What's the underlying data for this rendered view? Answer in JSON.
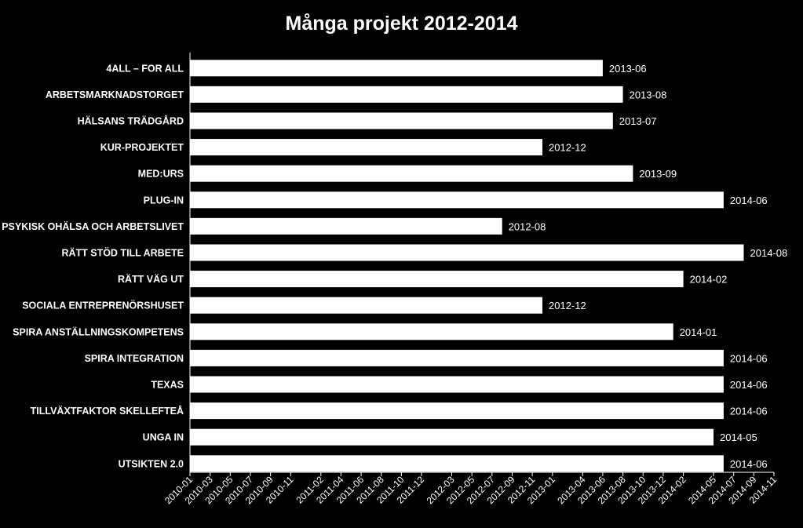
{
  "chart_data": {
    "type": "bar",
    "orientation": "horizontal",
    "title": "Många projekt 2012-2014",
    "xlabel": "",
    "ylabel": "",
    "grid": false,
    "legend": "none",
    "colors": {
      "background": "#000000",
      "bar": "#ffffff",
      "text": "#ffffff",
      "axis": "#ffffff"
    },
    "x_axis_type": "date",
    "xlim": [
      "2010-01",
      "2014-11"
    ],
    "x_ticks": [
      "2010-01",
      "2010-03",
      "2010-05",
      "2010-07",
      "2010-09",
      "2010-11",
      "2011-02",
      "2011-04",
      "2011-06",
      "2011-08",
      "2011-10",
      "2011-12",
      "2012-03",
      "2012-05",
      "2012-07",
      "2012-09",
      "2012-11",
      "2013-01",
      "2013-04",
      "2013-06",
      "2013-08",
      "2013-10",
      "2013-12",
      "2014-02",
      "2014-05",
      "2014-07",
      "2014-09",
      "2014-11"
    ],
    "categories": [
      "4ALL – FOR ALL",
      "ARBETSMARKNADSTORGET",
      "HÄLSANS TRÄDGÅRD",
      "KUR-PROJEKTET",
      "MED:URS",
      "PLUG-IN",
      "PSYKISK OHÄLSA OCH ARBETSLIVET",
      "RÄTT STÖD TILL ARBETE",
      "RÄTT VÄG UT",
      "SOCIALA ENTREPRENÖRSHUSET",
      "SPIRA ANSTÄLLNINGSKOMPETENS",
      "SPIRA INTEGRATION",
      "TEXAS",
      "TILLVÄXTFAKTOR SKELLEFTEÅ",
      "UNGA IN",
      "UTSIKTEN 2.0"
    ],
    "values": [
      "2013-06",
      "2013-08",
      "2013-07",
      "2012-12",
      "2013-09",
      "2014-06",
      "2012-08",
      "2014-08",
      "2014-02",
      "2012-12",
      "2014-01",
      "2014-06",
      "2014-06",
      "2014-06",
      "2014-05",
      "2014-06"
    ]
  }
}
